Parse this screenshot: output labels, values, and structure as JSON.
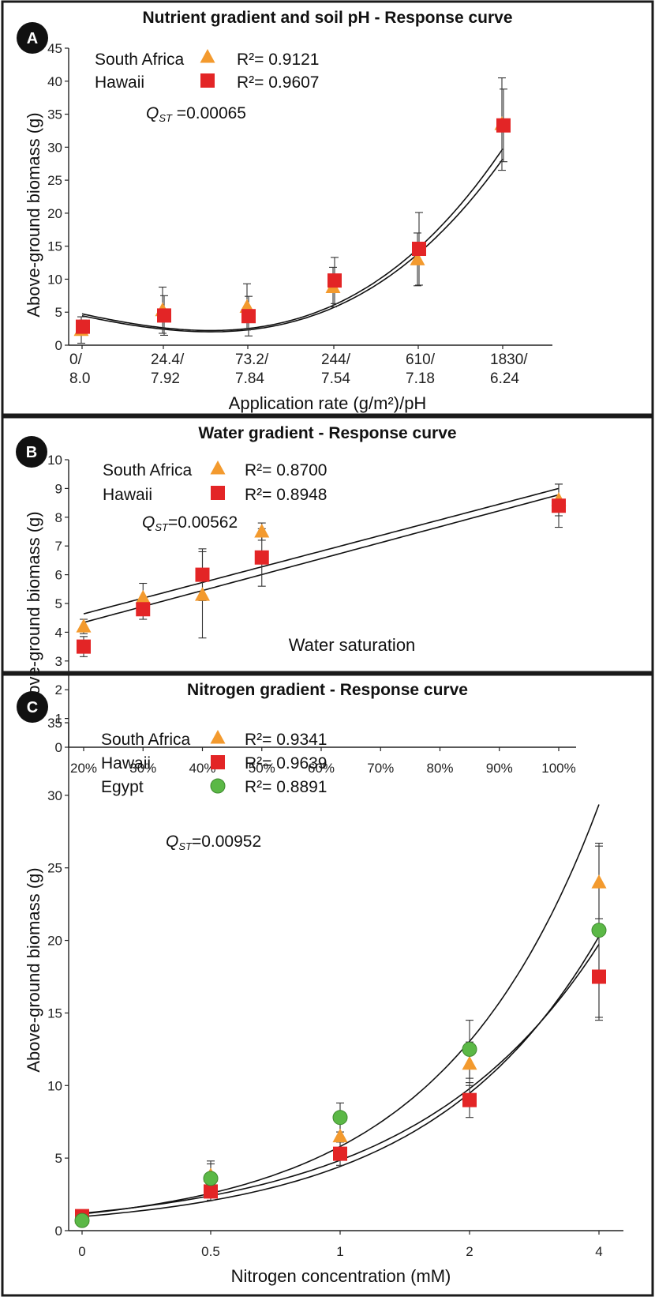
{
  "colors": {
    "south_africa": "#F39A2E",
    "hawaii": "#E32526",
    "egypt": "#5BB846",
    "curve": "#111111",
    "frame": "#1a1a1a"
  },
  "chart_data": [
    {
      "type": "scatter",
      "panel": "A",
      "title": "Nutrient gradient and soil pH - Response curve",
      "xlabel": "Application rate (g/m²)/pH",
      "ylabel": "Above-ground biomass (g)",
      "ylim": [
        0,
        45
      ],
      "yticks": [
        0,
        5,
        10,
        15,
        20,
        25,
        30,
        35,
        40,
        45
      ],
      "xticks": [
        {
          "label1": "0/",
          "label2": "8.0"
        },
        {
          "label1": "24.4/",
          "label2": "7.92"
        },
        {
          "label1": "73.2/",
          "label2": "7.84"
        },
        {
          "label1": "244/",
          "label2": "7.54"
        },
        {
          "label1": "610/",
          "label2": "7.18"
        },
        {
          "label1": "1830/",
          "label2": "6.24"
        }
      ],
      "series": [
        {
          "name": "South Africa",
          "marker": "triangle",
          "r2_label": "R²= 0.9121",
          "values": [
            2.3,
            5.3,
            5.8,
            8.8,
            13.0,
            33.5
          ],
          "err": [
            2.0,
            3.5,
            3.5,
            3.0,
            4.0,
            7.0
          ]
        },
        {
          "name": "Hawaii",
          "marker": "square",
          "r2_label": "R²= 0.9607",
          "values": [
            2.8,
            4.5,
            4.4,
            9.8,
            14.6,
            33.3
          ],
          "err": [
            1.0,
            3.0,
            3.0,
            3.5,
            5.5,
            5.5
          ]
        }
      ],
      "fits": [
        {
          "coef": [
            4.45,
            -2.65,
            0.35,
            0.226
          ]
        },
        {
          "coef": [
            4.75,
            -2.75,
            0.35,
            0.24
          ]
        }
      ],
      "annotation": {
        "q": "Q",
        "sub": "ST",
        "rest": " =0.00065"
      }
    },
    {
      "type": "scatter",
      "panel": "B",
      "title": "Water gradient - Response curve",
      "xlabel": "Water saturation",
      "ylabel": "Above-ground biomass (g)",
      "ylim": [
        0,
        10
      ],
      "yticks": [
        0,
        1,
        2,
        3,
        4,
        5,
        6,
        7,
        8,
        9,
        10
      ],
      "xlim": [
        20,
        100
      ],
      "xticks": [
        "20%",
        "30%",
        "40%",
        "50%",
        "60%",
        "70%",
        "80%",
        "90%",
        "100%"
      ],
      "x": [
        20,
        30,
        40,
        50,
        100
      ],
      "series": [
        {
          "name": "South Africa",
          "marker": "triangle",
          "r2_label": "R²= 0.8700",
          "values": [
            4.2,
            5.2,
            5.3,
            7.5,
            8.6
          ],
          "err": [
            0.25,
            0.5,
            1.5,
            0.3,
            0.55
          ]
        },
        {
          "name": "Hawaii",
          "marker": "square",
          "r2_label": "R²= 0.8948",
          "values": [
            3.5,
            4.8,
            6.0,
            6.6,
            8.4
          ],
          "err": [
            0.35,
            0.35,
            0.9,
            1.0,
            0.75
          ]
        }
      ],
      "fits": [
        {
          "coef": [
            4.64,
            0.0545
          ]
        },
        {
          "coef": [
            4.34,
            0.0555
          ]
        }
      ],
      "annotation": {
        "q": "Q",
        "sub": "ST",
        "rest": "=0.00562"
      }
    },
    {
      "type": "scatter",
      "panel": "C",
      "title": "Nitrogen gradient - Response curve",
      "xlabel": "Nitrogen concentration (mM)",
      "ylabel": "Above-ground biomass (g)",
      "ylim": [
        0,
        35
      ],
      "yticks": [
        0,
        5,
        10,
        15,
        20,
        25,
        30,
        35
      ],
      "xticks": [
        "0",
        "0.5",
        "1",
        "2",
        "4"
      ],
      "series": [
        {
          "name": "South Africa",
          "marker": "triangle",
          "r2_label": "R²= 0.9341",
          "values": [
            0.9,
            3.8,
            6.5,
            11.5,
            24.0
          ],
          "err": [
            0.5,
            1.0,
            1.0,
            1.5,
            2.5
          ]
        },
        {
          "name": "Hawaii",
          "marker": "square",
          "r2_label": "R²= 0.9639",
          "values": [
            1.0,
            2.7,
            5.3,
            9.0,
            17.5
          ],
          "err": [
            0.4,
            0.6,
            0.8,
            1.2,
            3.0
          ]
        },
        {
          "name": "Egypt",
          "marker": "circle",
          "r2_label": "R²= 0.8891",
          "values": [
            0.7,
            3.6,
            7.8,
            12.5,
            20.7
          ],
          "err": [
            0.4,
            1.0,
            1.0,
            2.0,
            6.0
          ]
        }
      ],
      "fits": [
        {
          "a": 1.15,
          "b": 0.81
        },
        {
          "a": 0.97,
          "b": 0.76
        },
        {
          "a": 1.2,
          "b": 0.7
        }
      ],
      "annotation": {
        "q": "Q",
        "sub": "ST",
        "rest": "=0.00952"
      }
    }
  ]
}
